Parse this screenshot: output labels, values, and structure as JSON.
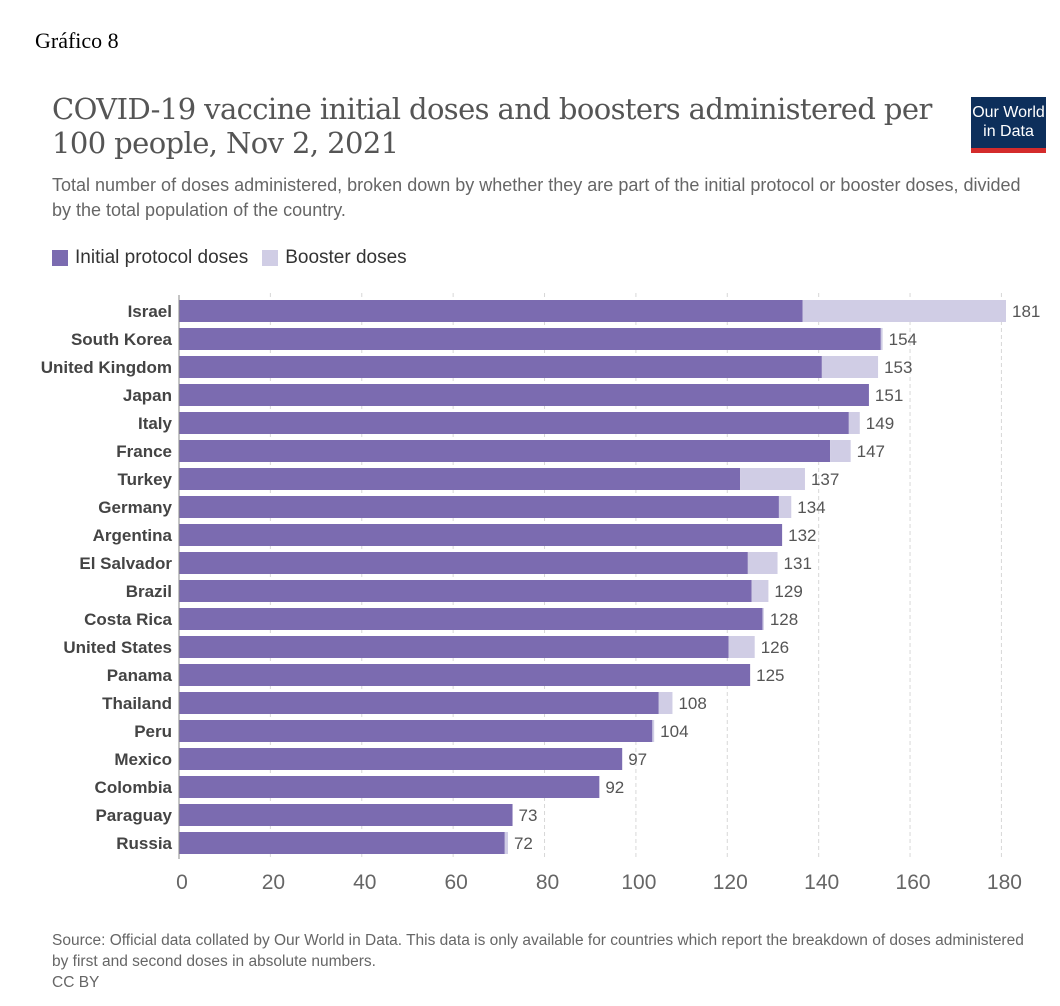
{
  "doc_label": "Gráfico 8",
  "logo": {
    "line1": "Our World",
    "line2": "in Data"
  },
  "colors": {
    "initial": "#7b6bb0",
    "booster": "#d0cde5",
    "grid": "#d8d8d8",
    "axis": "#888888",
    "text": "#333333"
  },
  "chart_data": {
    "type": "bar",
    "orientation": "horizontal",
    "stacked": true,
    "title": "COVID-19 vaccine initial doses and boosters administered per 100 people, Nov 2, 2021",
    "subtitle": "Total number of doses administered, broken down by whether they are part of the initial protocol or booster doses, divided by the total population of the country.",
    "categories": [
      "Israel",
      "South Korea",
      "United Kingdom",
      "Japan",
      "Italy",
      "France",
      "Turkey",
      "Germany",
      "Argentina",
      "El Salvador",
      "Brazil",
      "Costa Rica",
      "United States",
      "Panama",
      "Thailand",
      "Peru",
      "Mexico",
      "Colombia",
      "Paraguay",
      "Russia"
    ],
    "series": [
      {
        "name": "Initial protocol doses",
        "values": [
          136.5,
          153.6,
          140.7,
          151,
          146.6,
          142.5,
          122.8,
          131.3,
          132,
          124.5,
          125.3,
          127.7,
          120.3,
          125,
          105,
          103.6,
          97,
          92,
          73,
          71.3
        ]
      },
      {
        "name": "Booster doses",
        "values": [
          44.5,
          0.4,
          12.3,
          0,
          2.4,
          4.5,
          14.2,
          2.7,
          0,
          6.5,
          3.7,
          0.3,
          5.7,
          0,
          3,
          0.4,
          0,
          0,
          0,
          0.7
        ]
      }
    ],
    "totals": [
      181,
      154,
      153,
      151,
      149,
      147,
      137,
      134,
      132,
      131,
      129,
      128,
      126,
      125,
      108,
      104,
      97,
      92,
      73,
      72
    ],
    "xlim": [
      0,
      181
    ],
    "xticks": [
      0,
      20,
      40,
      60,
      80,
      100,
      120,
      140,
      160,
      180
    ],
    "grid": true,
    "legend_position": "top-left"
  },
  "source": {
    "line1": "Source: Official data collated by Our World in Data. This data is only available for countries which report the breakdown of doses administered",
    "line2": "by first and second doses in absolute numbers.",
    "license": "CC BY"
  }
}
